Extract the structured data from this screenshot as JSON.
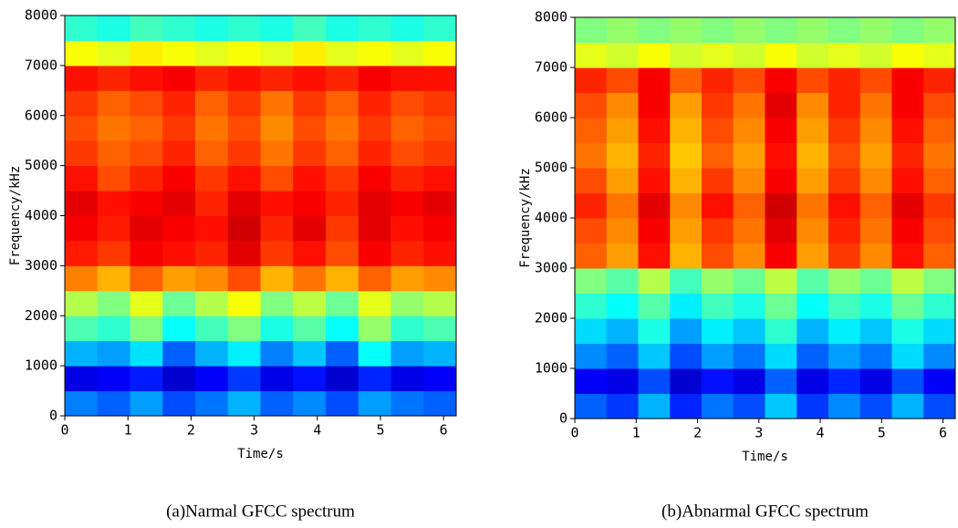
{
  "chart_data": [
    {
      "type": "heatmap",
      "colormap": "jet",
      "caption": "(a)Narmal GFCC spectrum",
      "xlabel": "Time/s",
      "ylabel": "Frequency/kHz",
      "xlim": [
        0,
        6.2
      ],
      "xticks": [
        0,
        1,
        2,
        3,
        4,
        5,
        6
      ],
      "ylim": [
        0,
        8000
      ],
      "yticks": [
        0,
        1000,
        2000,
        3000,
        4000,
        5000,
        6000,
        7000,
        8000
      ],
      "z": [
        [
          0.25,
          0.22,
          0.28,
          0.2,
          0.24,
          0.3,
          0.22,
          0.26,
          0.2,
          0.28,
          0.24,
          0.22
        ],
        [
          0.1,
          0.12,
          0.15,
          0.08,
          0.12,
          0.18,
          0.1,
          0.14,
          0.08,
          0.16,
          0.1,
          0.12
        ],
        [
          0.3,
          0.28,
          0.35,
          0.22,
          0.3,
          0.36,
          0.25,
          0.32,
          0.22,
          0.38,
          0.28,
          0.3
        ],
        [
          0.45,
          0.42,
          0.5,
          0.38,
          0.44,
          0.5,
          0.4,
          0.46,
          0.38,
          0.52,
          0.42,
          0.45
        ],
        [
          0.55,
          0.5,
          0.6,
          0.48,
          0.55,
          0.62,
          0.5,
          0.56,
          0.48,
          0.6,
          0.52,
          0.55
        ],
        [
          0.75,
          0.7,
          0.78,
          0.72,
          0.74,
          0.8,
          0.7,
          0.76,
          0.7,
          0.78,
          0.72,
          0.74
        ],
        [
          0.85,
          0.82,
          0.88,
          0.86,
          0.84,
          0.9,
          0.82,
          0.86,
          0.8,
          0.88,
          0.84,
          0.86
        ],
        [
          0.88,
          0.85,
          0.9,
          0.88,
          0.86,
          0.92,
          0.84,
          0.9,
          0.82,
          0.9,
          0.86,
          0.88
        ],
        [
          0.9,
          0.86,
          0.88,
          0.9,
          0.84,
          0.9,
          0.86,
          0.88,
          0.84,
          0.9,
          0.88,
          0.9
        ],
        [
          0.86,
          0.8,
          0.84,
          0.88,
          0.82,
          0.86,
          0.8,
          0.86,
          0.82,
          0.88,
          0.84,
          0.86
        ],
        [
          0.82,
          0.78,
          0.8,
          0.84,
          0.78,
          0.82,
          0.76,
          0.82,
          0.78,
          0.84,
          0.8,
          0.82
        ],
        [
          0.8,
          0.76,
          0.78,
          0.82,
          0.76,
          0.8,
          0.74,
          0.8,
          0.76,
          0.82,
          0.78,
          0.8
        ],
        [
          0.82,
          0.78,
          0.8,
          0.84,
          0.78,
          0.82,
          0.76,
          0.82,
          0.78,
          0.84,
          0.8,
          0.82
        ],
        [
          0.86,
          0.84,
          0.86,
          0.88,
          0.84,
          0.86,
          0.84,
          0.86,
          0.84,
          0.88,
          0.86,
          0.86
        ],
        [
          0.62,
          0.6,
          0.64,
          0.62,
          0.6,
          0.62,
          0.6,
          0.64,
          0.6,
          0.62,
          0.6,
          0.62
        ],
        [
          0.42,
          0.4,
          0.44,
          0.42,
          0.4,
          0.42,
          0.4,
          0.44,
          0.4,
          0.42,
          0.4,
          0.42
        ]
      ]
    },
    {
      "type": "heatmap",
      "colormap": "jet",
      "caption": "(b)Abnarmal GFCC spectrum",
      "xlabel": "Time/s",
      "ylabel": "Frequency/kHz",
      "xlim": [
        0,
        6.2
      ],
      "xticks": [
        0,
        1,
        2,
        3,
        4,
        5,
        6
      ],
      "ylim": [
        0,
        8000
      ],
      "yticks": [
        0,
        1000,
        2000,
        3000,
        4000,
        5000,
        6000,
        7000,
        8000
      ],
      "z": [
        [
          0.22,
          0.18,
          0.3,
          0.16,
          0.24,
          0.2,
          0.32,
          0.18,
          0.26,
          0.2,
          0.3,
          0.2
        ],
        [
          0.12,
          0.1,
          0.2,
          0.08,
          0.14,
          0.1,
          0.22,
          0.1,
          0.16,
          0.1,
          0.2,
          0.12
        ],
        [
          0.26,
          0.22,
          0.32,
          0.2,
          0.28,
          0.24,
          0.34,
          0.22,
          0.28,
          0.24,
          0.34,
          0.26
        ],
        [
          0.34,
          0.3,
          0.4,
          0.28,
          0.36,
          0.32,
          0.42,
          0.3,
          0.36,
          0.32,
          0.4,
          0.34
        ],
        [
          0.42,
          0.38,
          0.46,
          0.36,
          0.44,
          0.4,
          0.48,
          0.38,
          0.44,
          0.4,
          0.48,
          0.42
        ],
        [
          0.5,
          0.46,
          0.55,
          0.44,
          0.52,
          0.48,
          0.56,
          0.46,
          0.52,
          0.48,
          0.56,
          0.5
        ],
        [
          0.78,
          0.72,
          0.86,
          0.7,
          0.8,
          0.74,
          0.88,
          0.72,
          0.82,
          0.74,
          0.86,
          0.78
        ],
        [
          0.8,
          0.74,
          0.88,
          0.72,
          0.82,
          0.76,
          0.9,
          0.74,
          0.84,
          0.76,
          0.88,
          0.8
        ],
        [
          0.84,
          0.76,
          0.9,
          0.74,
          0.86,
          0.78,
          0.92,
          0.76,
          0.86,
          0.78,
          0.9,
          0.82
        ],
        [
          0.8,
          0.72,
          0.86,
          0.7,
          0.82,
          0.74,
          0.88,
          0.72,
          0.82,
          0.74,
          0.86,
          0.78
        ],
        [
          0.76,
          0.7,
          0.84,
          0.68,
          0.78,
          0.72,
          0.86,
          0.7,
          0.8,
          0.72,
          0.84,
          0.76
        ],
        [
          0.78,
          0.72,
          0.86,
          0.7,
          0.8,
          0.74,
          0.88,
          0.72,
          0.82,
          0.74,
          0.86,
          0.78
        ],
        [
          0.8,
          0.74,
          0.88,
          0.72,
          0.82,
          0.76,
          0.9,
          0.74,
          0.84,
          0.76,
          0.88,
          0.8
        ],
        [
          0.84,
          0.8,
          0.88,
          0.78,
          0.84,
          0.8,
          0.88,
          0.8,
          0.84,
          0.8,
          0.88,
          0.84
        ],
        [
          0.6,
          0.58,
          0.62,
          0.58,
          0.6,
          0.58,
          0.62,
          0.58,
          0.6,
          0.58,
          0.62,
          0.6
        ],
        [
          0.5,
          0.52,
          0.5,
          0.52,
          0.5,
          0.52,
          0.5,
          0.52,
          0.5,
          0.52,
          0.5,
          0.52
        ]
      ]
    }
  ]
}
